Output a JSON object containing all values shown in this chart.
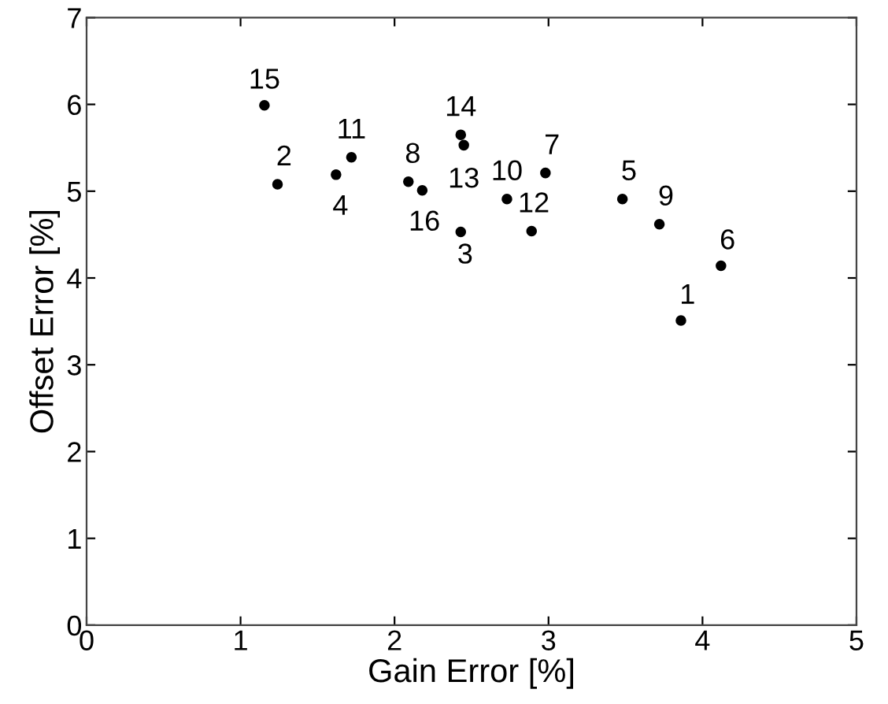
{
  "chart_data": {
    "type": "scatter",
    "xlabel": "Gain Error [%]",
    "ylabel": "Offset Error [%]",
    "x": [
      3.86,
      1.24,
      2.43,
      1.62,
      3.48,
      4.12,
      2.98,
      2.09,
      3.72,
      2.73,
      1.72,
      2.89,
      2.45,
      2.43,
      1.155,
      2.18
    ],
    "values": [
      3.51,
      5.08,
      4.53,
      5.19,
      4.91,
      4.14,
      5.21,
      5.11,
      4.62,
      4.91,
      5.39,
      4.54,
      5.53,
      5.65,
      5.99,
      5.01
    ],
    "color": "#000000",
    "marker": "circle",
    "grid": false,
    "xlim": [
      0,
      5
    ],
    "ylim": [
      0,
      7
    ],
    "xticks": [
      0,
      1,
      2,
      3,
      4,
      5
    ],
    "yticks": [
      0,
      1,
      2,
      3,
      4,
      5,
      6,
      7
    ],
    "annotations": [
      {
        "text": "1",
        "x": 3.86,
        "y": 3.51
      },
      {
        "text": "2",
        "x": 1.24,
        "y": 5.08
      },
      {
        "text": "3",
        "x": 2.43,
        "y": 4.53
      },
      {
        "text": "4",
        "x": 1.62,
        "y": 5.19
      },
      {
        "text": "5",
        "x": 3.48,
        "y": 4.91
      },
      {
        "text": "6",
        "x": 4.12,
        "y": 4.14
      },
      {
        "text": "7",
        "x": 2.98,
        "y": 5.21
      },
      {
        "text": "8",
        "x": 2.09,
        "y": 5.11
      },
      {
        "text": "9",
        "x": 3.72,
        "y": 4.62
      },
      {
        "text": "10",
        "x": 2.73,
        "y": 4.91
      },
      {
        "text": "11",
        "x": 1.72,
        "y": 5.39
      },
      {
        "text": "12",
        "x": 2.89,
        "y": 4.54
      },
      {
        "text": "13",
        "x": 2.45,
        "y": 5.53
      },
      {
        "text": "14",
        "x": 2.43,
        "y": 5.65
      },
      {
        "text": "15",
        "x": 1.155,
        "y": 5.99
      },
      {
        "text": "16",
        "x": 2.18,
        "y": 5.01
      }
    ]
  }
}
